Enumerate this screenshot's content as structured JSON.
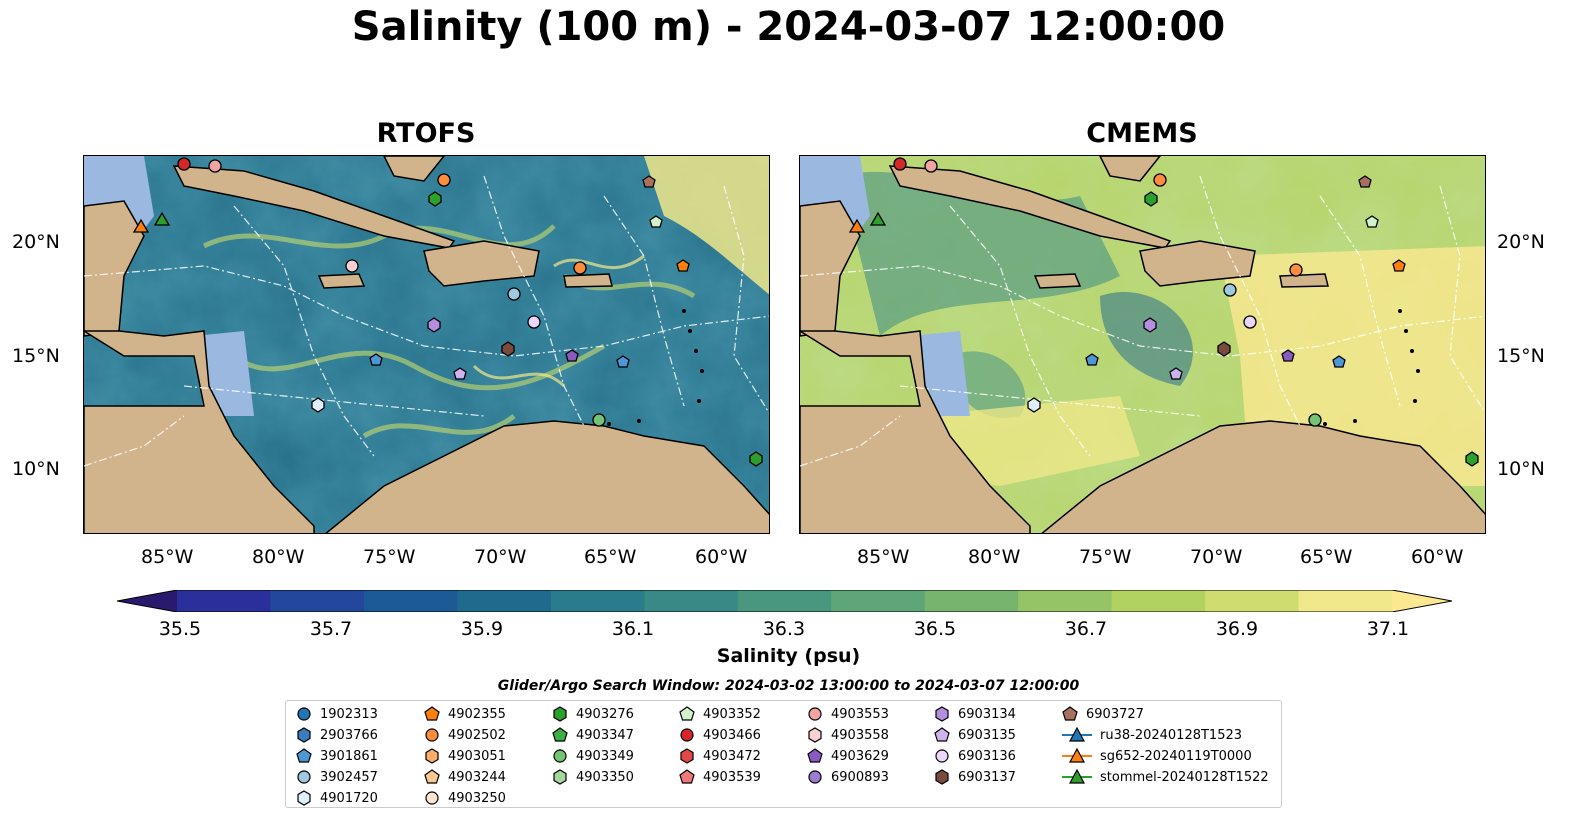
{
  "figure": {
    "title": "Salinity (100 m) - 2024-03-07 12:00:00",
    "panels": [
      {
        "title": "RTOFS"
      },
      {
        "title": "CMEMS"
      }
    ],
    "lat_ticks": [
      "20°N",
      "15°N",
      "10°N"
    ],
    "lon_ticks": [
      "85°W",
      "80°W",
      "75°W",
      "70°W",
      "65°W",
      "60°W"
    ]
  },
  "colors": {
    "land": "#d2b48c",
    "shelf": "#9bb8e1",
    "deep_ocean": "#26185e",
    "eez_lines": "#ffffff",
    "coastline": "#000000",
    "colormap": [
      "#2a1a6e",
      "#2b2f9c",
      "#22479c",
      "#1b5a96",
      "#1e6b8e",
      "#2a7b8b",
      "#398a86",
      "#4a9780",
      "#5ea67a",
      "#77b56f",
      "#94c466",
      "#b1d161",
      "#cfdc6f",
      "#f0e88a",
      "#fbe891"
    ]
  },
  "colorbar": {
    "label": "Salinity (psu)",
    "ticks": [
      "35.5",
      "35.7",
      "35.9",
      "36.1",
      "36.3",
      "36.5",
      "36.7",
      "36.9",
      "37.1"
    ]
  },
  "search_window": "Glider/Argo Search Window: 2024-03-02 13:00:00 to 2024-03-07 12:00:00",
  "legend": [
    {
      "label": "1902313",
      "marker": "circle",
      "color": "#1f77b4"
    },
    {
      "label": "2903766",
      "marker": "hexagon",
      "color": "#3a7dbd"
    },
    {
      "label": "3901861",
      "marker": "pentagon",
      "color": "#4d97d6"
    },
    {
      "label": "3902457",
      "marker": "circle",
      "color": "#9ecae1"
    },
    {
      "label": "4901720",
      "marker": "hexagon",
      "color": "#dff0fb"
    },
    {
      "label": "4902355",
      "marker": "pentagon",
      "color": "#ff7f0e"
    },
    {
      "label": "4902502",
      "marker": "circle",
      "color": "#fd8d3c"
    },
    {
      "label": "4903051",
      "marker": "hexagon",
      "color": "#fdae6b"
    },
    {
      "label": "4903244",
      "marker": "pentagon",
      "color": "#fdc895"
    },
    {
      "label": "4903250",
      "marker": "circle",
      "color": "#fee6ce"
    },
    {
      "label": "4903276",
      "marker": "hexagon",
      "color": "#2ca02c"
    },
    {
      "label": "4903347",
      "marker": "pentagon",
      "color": "#3cb043"
    },
    {
      "label": "4903349",
      "marker": "circle",
      "color": "#74c476"
    },
    {
      "label": "4903350",
      "marker": "hexagon",
      "color": "#a1d99b"
    },
    {
      "label": "4903352",
      "marker": "pentagon",
      "color": "#d3f2cc"
    },
    {
      "label": "4903466",
      "marker": "circle",
      "color": "#d62728"
    },
    {
      "label": "4903472",
      "marker": "hexagon",
      "color": "#e3474a"
    },
    {
      "label": "4903539",
      "marker": "pentagon",
      "color": "#f07a7b"
    },
    {
      "label": "4903553",
      "marker": "circle",
      "color": "#f4a3a3"
    },
    {
      "label": "4903558",
      "marker": "hexagon",
      "color": "#fbd0d0"
    },
    {
      "label": "4903629",
      "marker": "pentagon",
      "color": "#8a5ac2"
    },
    {
      "label": "6900893",
      "marker": "circle",
      "color": "#9c7cd0"
    },
    {
      "label": "6903134",
      "marker": "hexagon",
      "color": "#b48fe0"
    },
    {
      "label": "6903135",
      "marker": "pentagon",
      "color": "#cfb3ef"
    },
    {
      "label": "6903136",
      "marker": "circle",
      "color": "#ead7fb"
    },
    {
      "label": "6903137",
      "marker": "hexagon",
      "color": "#7b4a3e"
    },
    {
      "label": "6903727",
      "marker": "pentagon",
      "color": "#a87060"
    },
    {
      "label": "ru38-20240128T1523",
      "marker": "triangle-line",
      "color": "#1f77b4"
    },
    {
      "label": "sg652-20240119T0000",
      "marker": "triangle-line",
      "color": "#ff7f0e"
    },
    {
      "label": "stommel-20240128T1522",
      "marker": "triangle-line",
      "color": "#2ca02c"
    }
  ]
}
